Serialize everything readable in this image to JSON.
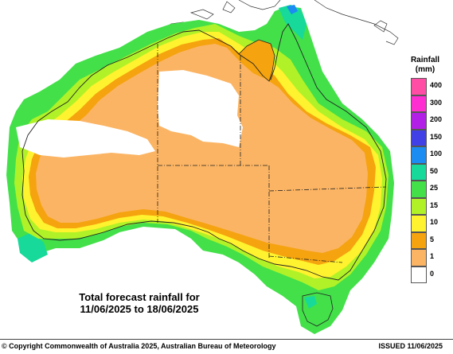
{
  "caption": {
    "line1": "Total forecast rainfall for",
    "line2": "11/06/2025 to 18/06/2025"
  },
  "legend": {
    "title_line1": "Rainfall",
    "title_line2": "(mm)",
    "items": [
      {
        "label": "400",
        "color": "#ff4da6"
      },
      {
        "label": "300",
        "color": "#ff2ed1"
      },
      {
        "label": "200",
        "color": "#b21fe6"
      },
      {
        "label": "150",
        "color": "#4040e6"
      },
      {
        "label": "100",
        "color": "#1a8cf2"
      },
      {
        "label": "50",
        "color": "#17d99a"
      },
      {
        "label": "25",
        "color": "#43e04a"
      },
      {
        "label": "15",
        "color": "#b0f227"
      },
      {
        "label": "10",
        "color": "#fff22e"
      },
      {
        "label": "5",
        "color": "#f5a30f"
      },
      {
        "label": "1",
        "color": "#fbb463"
      },
      {
        "label": "0",
        "color": "#ffffff"
      }
    ]
  },
  "footer": {
    "copyright": "© Copyright Commonwealth of Australia 2025, Australian Bureau of Meteorology",
    "issued": "ISSUED 11/06/2025"
  }
}
